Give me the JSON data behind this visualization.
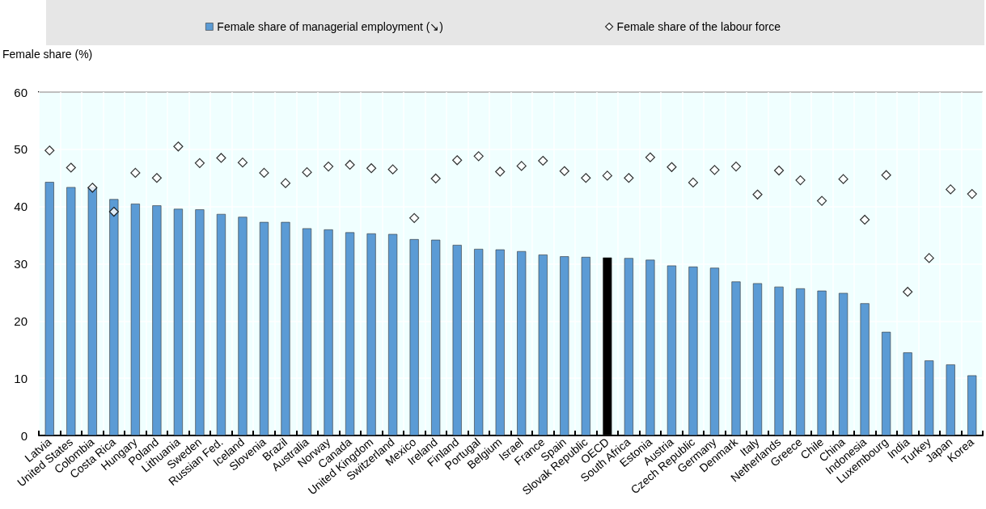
{
  "chart_data": {
    "type": "bar",
    "ylabel": "Female share (%)",
    "categories": [
      "Latvia",
      "United States",
      "Colombia",
      "Costa Rica",
      "Hungary",
      "Poland",
      "Lithuania",
      "Sweden",
      "Russian Fed.",
      "Iceland",
      "Slovenia",
      "Brazil",
      "Australia",
      "Norway",
      "Canada",
      "United Kingdom",
      "Switzerland",
      "Mexico",
      "Ireland",
      "Finland",
      "Portugal",
      "Belgium",
      "Israel",
      "France",
      "Spain",
      "Slovak Republic",
      "OECD",
      "South Africa",
      "Estonia",
      "Austria",
      "Czech Republic",
      "Germany",
      "Denmark",
      "Italy",
      "Netherlands",
      "Greece",
      "Chile",
      "China",
      "Indonesia",
      "Luxembourg",
      "India",
      "Turkey",
      "Japan",
      "Korea"
    ],
    "series": [
      {
        "name": "Female share of managerial employment (↘)",
        "type": "bar",
        "color": "#5b9bd5",
        "colors": [
          "#5b9bd5",
          "#5b9bd5",
          "#5b9bd5",
          "#5b9bd5",
          "#5b9bd5",
          "#5b9bd5",
          "#5b9bd5",
          "#5b9bd5",
          "#5b9bd5",
          "#5b9bd5",
          "#5b9bd5",
          "#5b9bd5",
          "#5b9bd5",
          "#5b9bd5",
          "#5b9bd5",
          "#5b9bd5",
          "#5b9bd5",
          "#5b9bd5",
          "#5b9bd5",
          "#5b9bd5",
          "#5b9bd5",
          "#5b9bd5",
          "#5b9bd5",
          "#5b9bd5",
          "#5b9bd5",
          "#5b9bd5",
          "#000000",
          "#5b9bd5",
          "#5b9bd5",
          "#5b9bd5",
          "#5b9bd5",
          "#5b9bd5",
          "#5b9bd5",
          "#5b9bd5",
          "#5b9bd5",
          "#5b9bd5",
          "#5b9bd5",
          "#5b9bd5",
          "#5b9bd5",
          "#5b9bd5",
          "#5b9bd5",
          "#5b9bd5",
          "#5b9bd5",
          "#5b9bd5"
        ],
        "values": [
          44.3,
          43.4,
          43.4,
          41.3,
          40.5,
          40.2,
          39.6,
          39.5,
          38.7,
          38.2,
          37.3,
          37.3,
          36.2,
          36.0,
          35.5,
          35.3,
          35.2,
          34.3,
          34.2,
          33.3,
          32.6,
          32.5,
          32.2,
          31.6,
          31.3,
          31.2,
          31.1,
          31.0,
          30.7,
          29.7,
          29.5,
          29.3,
          26.9,
          26.6,
          26.0,
          25.7,
          25.3,
          24.9,
          23.1,
          18.1,
          14.5,
          13.1,
          12.4,
          10.5
        ]
      },
      {
        "name": "Female share of the labour force",
        "type": "scatter",
        "marker": "diamond",
        "color": "#000000",
        "x": [
          "Latvia",
          "United States",
          "Colombia",
          "Costa Rica",
          "Hungary",
          "Poland",
          "Lithuania",
          "Sweden",
          "Russian Fed.",
          "Iceland",
          "Slovenia",
          "Brazil",
          "Australia",
          "Norway",
          "Canada",
          "United Kingdom",
          "Switzerland",
          "Mexico",
          "Ireland",
          "Finland",
          "Portugal",
          "Belgium",
          "Israel",
          "France",
          "Spain",
          "Slovak Republic",
          "OECD",
          "South Africa",
          "Estonia",
          "Austria",
          "Czech Republic",
          "Germany",
          "Denmark",
          "Italy",
          "Netherlands",
          "Greece",
          "Chile",
          "China",
          "Indonesia",
          "Luxembourg",
          "India",
          "Turkey",
          "Japan",
          "Korea"
        ],
        "values": [
          49.8,
          46.8,
          43.3,
          39.1,
          45.9,
          45.0,
          50.5,
          47.6,
          48.5,
          47.7,
          45.9,
          44.1,
          46.0,
          47.0,
          47.3,
          46.7,
          46.5,
          38.0,
          44.9,
          48.1,
          48.8,
          46.1,
          47.1,
          48.0,
          46.2,
          45.0,
          45.4,
          45.0,
          48.6,
          46.9,
          44.2,
          46.4,
          47.0,
          42.1,
          46.3,
          44.6,
          41.0,
          44.8,
          37.7,
          45.5,
          25.1,
          31.0,
          43.0,
          42.2
        ]
      }
    ],
    "ylim": [
      0,
      60
    ],
    "yticks": [
      0,
      10,
      20,
      30,
      40,
      50,
      60
    ],
    "grid": true,
    "legend": "top"
  }
}
